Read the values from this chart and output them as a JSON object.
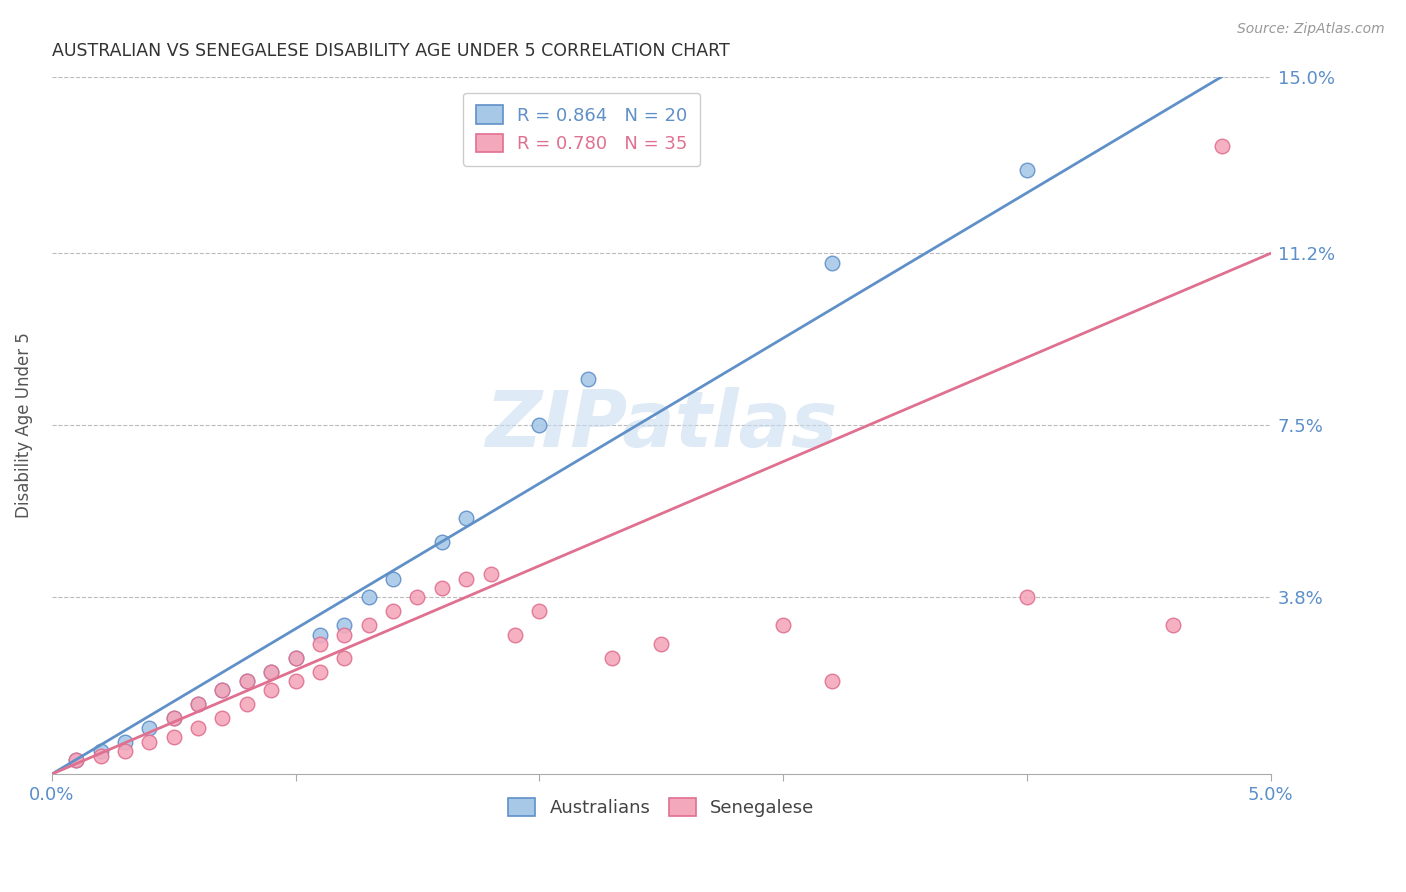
{
  "title": "AUSTRALIAN VS SENEGALESE DISABILITY AGE UNDER 5 CORRELATION CHART",
  "source": "Source: ZipAtlas.com",
  "ylabel": "Disability Age Under 5",
  "xlabel": "",
  "xlim": [
    0.0,
    0.05
  ],
  "ylim": [
    0.0,
    0.15
  ],
  "xtick_labels": [
    "0.0%",
    "",
    "",
    "",
    "",
    "5.0%"
  ],
  "xtick_vals": [
    0.0,
    0.01,
    0.02,
    0.03,
    0.04,
    0.05
  ],
  "ytick_labels": [
    "3.8%",
    "7.5%",
    "11.2%",
    "15.0%"
  ],
  "ytick_vals": [
    0.038,
    0.075,
    0.112,
    0.15
  ],
  "australian_color": "#A8C8E8",
  "senegalese_color": "#F4A8BC",
  "line_aus_color": "#6090C8",
  "line_sen_color": "#E07090",
  "legend_R_aus": "R = 0.864",
  "legend_N_aus": "N = 20",
  "legend_R_sen": "R = 0.780",
  "legend_N_sen": "N = 35",
  "watermark": "ZIPatlas",
  "aus_line_x": [
    0.0,
    0.048
  ],
  "aus_line_y": [
    0.0,
    0.15
  ],
  "sen_line_x": [
    0.0,
    0.05
  ],
  "sen_line_y": [
    0.0,
    0.112
  ],
  "australian_x": [
    0.001,
    0.002,
    0.003,
    0.004,
    0.005,
    0.006,
    0.007,
    0.008,
    0.009,
    0.01,
    0.011,
    0.012,
    0.013,
    0.014,
    0.016,
    0.017,
    0.02,
    0.022,
    0.032,
    0.04
  ],
  "australian_y": [
    0.003,
    0.005,
    0.007,
    0.01,
    0.012,
    0.015,
    0.018,
    0.02,
    0.022,
    0.025,
    0.03,
    0.032,
    0.038,
    0.042,
    0.05,
    0.055,
    0.075,
    0.085,
    0.11,
    0.13
  ],
  "senegalese_x": [
    0.001,
    0.002,
    0.003,
    0.004,
    0.005,
    0.005,
    0.006,
    0.006,
    0.007,
    0.007,
    0.008,
    0.008,
    0.009,
    0.009,
    0.01,
    0.01,
    0.011,
    0.011,
    0.012,
    0.012,
    0.013,
    0.014,
    0.015,
    0.016,
    0.017,
    0.018,
    0.019,
    0.02,
    0.023,
    0.025,
    0.03,
    0.032,
    0.04,
    0.046,
    0.048
  ],
  "senegalese_y": [
    0.003,
    0.004,
    0.005,
    0.007,
    0.008,
    0.012,
    0.01,
    0.015,
    0.012,
    0.018,
    0.015,
    0.02,
    0.018,
    0.022,
    0.02,
    0.025,
    0.022,
    0.028,
    0.025,
    0.03,
    0.032,
    0.035,
    0.038,
    0.04,
    0.042,
    0.043,
    0.03,
    0.035,
    0.025,
    0.028,
    0.032,
    0.02,
    0.038,
    0.032,
    0.135
  ],
  "background_color": "#FFFFFF",
  "grid_color": "#BBBBBB"
}
